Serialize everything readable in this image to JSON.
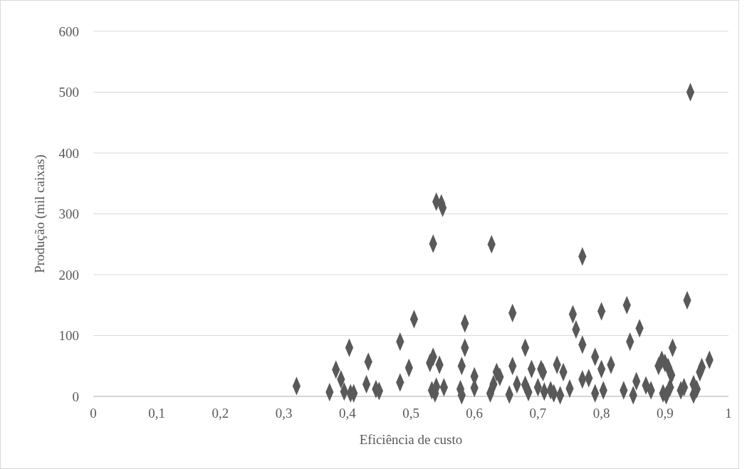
{
  "chart_data": {
    "type": "scatter",
    "xlabel": "Eficiência de custo",
    "ylabel": "Produção (mil caixas)",
    "xlim": [
      0,
      1
    ],
    "xticks": [
      0,
      {
        "value": 0.1,
        "label": "0,1"
      },
      {
        "value": 0.2,
        "label": "0,2"
      },
      {
        "value": 0.3,
        "label": "0,3"
      },
      {
        "value": 0.4,
        "label": "0,4"
      },
      {
        "value": 0.5,
        "label": "0,5"
      },
      {
        "value": 0.6,
        "label": "0,6"
      },
      {
        "value": 0.7,
        "label": "0,7"
      },
      {
        "value": 0.8,
        "label": "0,8"
      },
      {
        "value": 0.9,
        "label": "0,9"
      },
      1
    ],
    "ylim": [
      0,
      600
    ],
    "yticks": [
      0,
      100,
      200,
      300,
      400,
      500,
      600
    ],
    "grid": "y",
    "marker": "diamond",
    "series": [
      {
        "color": "#595959",
        "x": [
          0.32,
          0.372,
          0.382,
          0.39,
          0.395,
          0.403,
          0.405,
          0.41,
          0.43,
          0.433,
          0.445,
          0.45,
          0.483,
          0.483,
          0.497,
          0.505,
          0.53,
          0.533,
          0.535,
          0.535,
          0.538,
          0.54,
          0.54,
          0.545,
          0.548,
          0.55,
          0.552,
          0.578,
          0.58,
          0.58,
          0.585,
          0.585,
          0.6,
          0.6,
          0.625,
          0.627,
          0.63,
          0.635,
          0.64,
          0.655,
          0.66,
          0.66,
          0.667,
          0.68,
          0.68,
          0.685,
          0.69,
          0.7,
          0.705,
          0.708,
          0.71,
          0.72,
          0.725,
          0.73,
          0.735,
          0.74,
          0.75,
          0.755,
          0.76,
          0.77,
          0.77,
          0.77,
          0.78,
          0.79,
          0.79,
          0.8,
          0.8,
          0.803,
          0.815,
          0.835,
          0.84,
          0.845,
          0.85,
          0.855,
          0.86,
          0.87,
          0.878,
          0.89,
          0.895,
          0.897,
          0.9,
          0.902,
          0.905,
          0.908,
          0.91,
          0.912,
          0.925,
          0.93,
          0.935,
          0.94,
          0.945,
          0.945,
          0.95,
          0.955,
          0.958,
          0.97
        ],
        "values": [
          17,
          7,
          44,
          28,
          8,
          80,
          5,
          5,
          20,
          57,
          12,
          9,
          90,
          23,
          47,
          127,
          55,
          10,
          251,
          65,
          5,
          320,
          16,
          52,
          317,
          310,
          15,
          12,
          2,
          50,
          120,
          80,
          33,
          14,
          5,
          250,
          20,
          40,
          32,
          3,
          137,
          50,
          20,
          80,
          19,
          7,
          45,
          15,
          45,
          40,
          8,
          10,
          5,
          52,
          2,
          40,
          13,
          135,
          110,
          230,
          85,
          28,
          30,
          65,
          5,
          140,
          45,
          10,
          52,
          10,
          150,
          90,
          2,
          25,
          112,
          18,
          10,
          50,
          60,
          5,
          55,
          2,
          48,
          15,
          35,
          80,
          10,
          15,
          158,
          500,
          3,
          20,
          12,
          40,
          48,
          60
        ]
      }
    ]
  }
}
